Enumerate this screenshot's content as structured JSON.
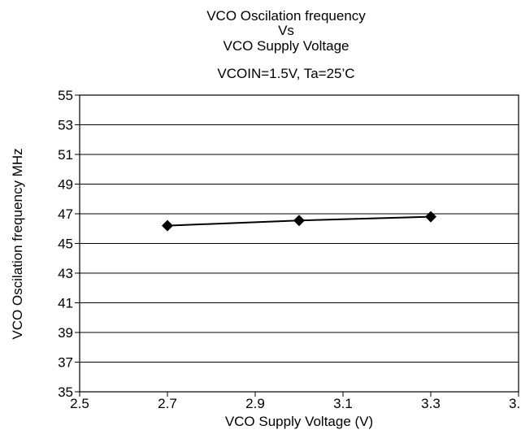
{
  "chart_data": {
    "type": "line",
    "title_lines": [
      "VCO Oscilation frequency",
      "Vs",
      "VCO Supply Voltage"
    ],
    "subtitle": "VCOIN=1.5V, Ta=25’C",
    "xlabel": "VCO Supply Voltage (V)",
    "ylabel": "VCO Oscilation frequency MHz",
    "xlim": [
      2.5,
      3.5
    ],
    "ylim": [
      35,
      55
    ],
    "x_ticks": [
      "2.5",
      "2.7",
      "2.9",
      "3.1",
      "3.3",
      "3."
    ],
    "y_ticks": [
      "55",
      "53",
      "51",
      "49",
      "47",
      "45",
      "43",
      "41",
      "39",
      "37",
      "35"
    ],
    "grid": "horizontal",
    "legend": "none",
    "series": [
      {
        "x": [
          2.7,
          3.0,
          3.3
        ],
        "y": [
          46.2,
          46.55,
          46.8
        ],
        "color": "#000000",
        "marker": "diamond"
      }
    ]
  }
}
